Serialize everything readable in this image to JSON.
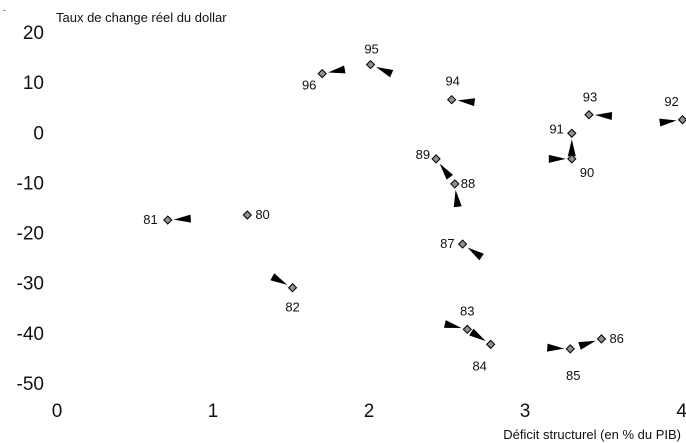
{
  "chart_data": {
    "type": "scatter",
    "title": "",
    "ylabel": "Taux de change réel du dollar",
    "xlabel": "Déficit structurel (en % du PIB)",
    "xlim": [
      0,
      4
    ],
    "ylim": [
      -50,
      20
    ],
    "xticks": [
      "0",
      "1",
      "2",
      "3",
      "4"
    ],
    "yticks": [
      "20",
      "10",
      "0",
      "-10",
      "-20",
      "-30",
      "-40",
      "-50"
    ],
    "grid": false,
    "legend": "none",
    "stray_mark": "-",
    "colors": {
      "marker_fill": "#909090",
      "marker_stroke": "#000000",
      "arrow": "#000000"
    },
    "points": [
      {
        "label": "80",
        "x": 1.22,
        "y": -16.5
      },
      {
        "label": "81",
        "x": 0.71,
        "y": -17.5
      },
      {
        "label": "82",
        "x": 1.51,
        "y": -31.0
      },
      {
        "label": "83",
        "x": 2.63,
        "y": -39.3
      },
      {
        "label": "84",
        "x": 2.78,
        "y": -42.3
      },
      {
        "label": "85",
        "x": 3.29,
        "y": -43.2
      },
      {
        "label": "86",
        "x": 3.49,
        "y": -41.2
      },
      {
        "label": "87",
        "x": 2.6,
        "y": -22.3
      },
      {
        "label": "88",
        "x": 2.55,
        "y": -10.3
      },
      {
        "label": "89",
        "x": 2.43,
        "y": -5.3
      },
      {
        "label": "90",
        "x": 3.3,
        "y": -5.3
      },
      {
        "label": "91",
        "x": 3.3,
        "y": -0.2
      },
      {
        "label": "92",
        "x": 4.01,
        "y": 2.5
      },
      {
        "label": "93",
        "x": 3.41,
        "y": 3.5
      },
      {
        "label": "94",
        "x": 2.53,
        "y": 6.5
      },
      {
        "label": "95",
        "x": 2.01,
        "y": 13.5
      },
      {
        "label": "96",
        "x": 1.7,
        "y": 11.7
      }
    ]
  }
}
